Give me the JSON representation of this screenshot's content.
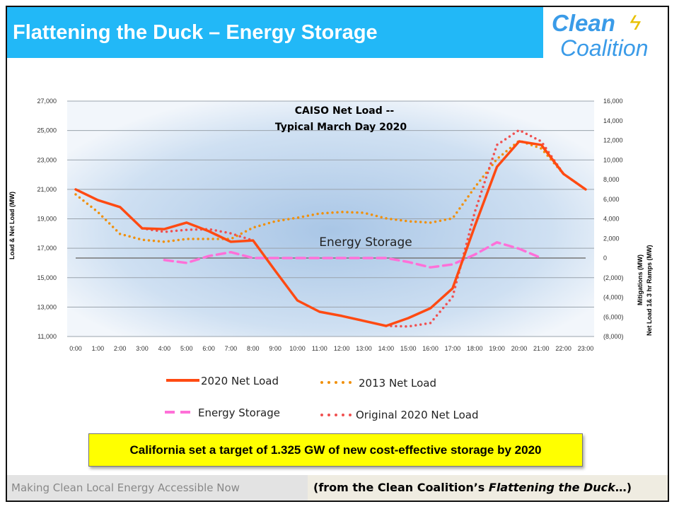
{
  "slide": {
    "title": "Flattening the Duck – Energy Storage",
    "logo_line1": "Clean",
    "logo_line2": "Coalition",
    "callout": "California set a target of 1.325 GW of new cost-effective storage by 2020",
    "footer_left": "Making Clean Local Energy Accessible Now",
    "footer_right_prefix": "(from the Clean Coalition’s ",
    "footer_right_italic": "Flattening the Duck",
    "footer_right_suffix": "…)",
    "colors": {
      "header": "#22b8f7",
      "net2020": "#ff4a12",
      "net2013": "#f0900a",
      "storage": "#ff70d8",
      "orig2020": "#f05050",
      "callout": "#ffff00"
    }
  },
  "chart_data": {
    "type": "line",
    "title_line1": "CAISO Net Load --",
    "title_line2": "Typical March Day 2020",
    "annotation": "Energy Storage",
    "ylabel": "Load & Net Load (MW)",
    "y2label_line1": "Mitigations (MW)",
    "y2label_line2": "Net Load 1& 3 hr  Ramps (MW)",
    "ylim": [
      11000,
      27000
    ],
    "y2lim": [
      -8000,
      16000
    ],
    "grid": true,
    "legend": "bottom",
    "y_ticks": [
      "11,000",
      "13,000",
      "15,000",
      "17,000",
      "19,000",
      "21,000",
      "23,000",
      "25,000",
      "27,000"
    ],
    "y2_ticks": [
      "(8,000)",
      "(6,000)",
      "(4,000)",
      "(2,000)",
      "0",
      "2,000",
      "4,000",
      "6,000",
      "8,000",
      "10,000",
      "12,000",
      "14,000",
      "16,000"
    ],
    "x": [
      "0:00",
      "1:00",
      "2:00",
      "3:00",
      "4:00",
      "5:00",
      "6:00",
      "7:00",
      "8:00",
      "9:00",
      "10:00",
      "11:00",
      "12:00",
      "13:00",
      "14:00",
      "15:00",
      "16:00",
      "17:00",
      "18:00",
      "19:00",
      "20:00",
      "21:00",
      "22:00",
      "23:00"
    ],
    "series": [
      {
        "name": "2020 Net Load",
        "axis": "left",
        "style": "solid",
        "values": [
          21000,
          20270,
          19800,
          18350,
          18300,
          18740,
          18160,
          17440,
          17530,
          15470,
          13450,
          12680,
          12400,
          12060,
          11720,
          12250,
          12920,
          14270,
          18500,
          22530,
          24260,
          24020,
          22050,
          21000
        ]
      },
      {
        "name": "2013 Net Load",
        "axis": "left",
        "style": "dotted",
        "values": [
          20660,
          19460,
          17970,
          17580,
          17440,
          17630,
          17630,
          17630,
          18400,
          18830,
          19070,
          19360,
          19460,
          19410,
          19030,
          18830,
          18740,
          19030,
          21140,
          23060,
          24310,
          23780,
          22050,
          21000
        ]
      },
      {
        "name": "Energy Storage",
        "axis": "right",
        "style": "dashed",
        "values": [
          null,
          null,
          null,
          null,
          -200,
          -500,
          200,
          600,
          0,
          0,
          0,
          0,
          0,
          0,
          0,
          -400,
          -950,
          -650,
          350,
          1600,
          950,
          0,
          null,
          null
        ]
      },
      {
        "name": "Original 2020 Net Load",
        "axis": "left",
        "style": "dotted",
        "values": [
          null,
          null,
          null,
          18350,
          18110,
          18250,
          18300,
          18010,
          17530,
          null,
          null,
          null,
          null,
          null,
          11720,
          11680,
          11920,
          13690,
          19460,
          24020,
          25030,
          24260,
          22050,
          null
        ]
      }
    ]
  }
}
